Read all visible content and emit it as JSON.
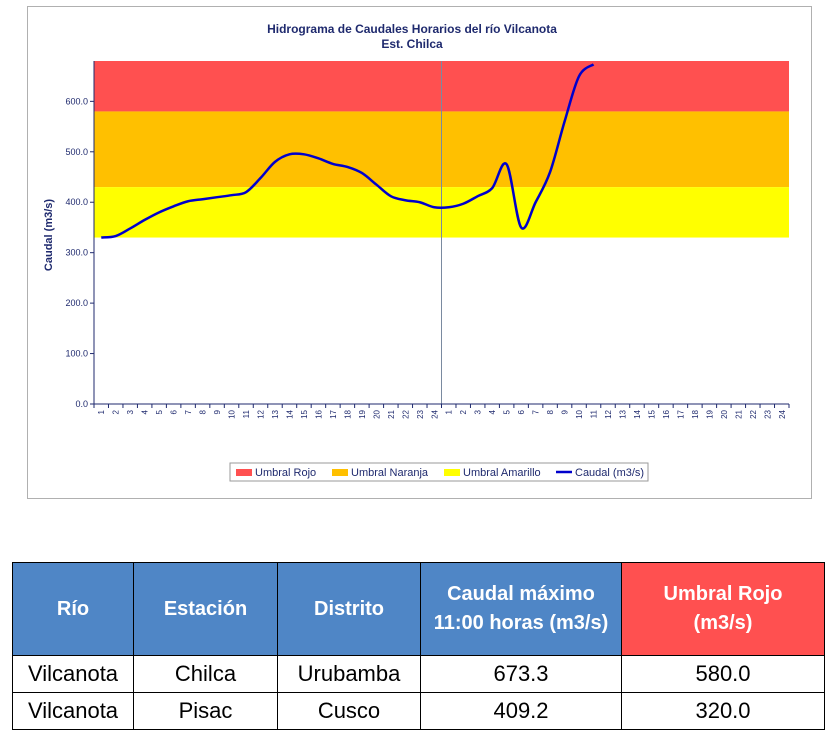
{
  "chart_data": {
    "type": "area",
    "title": "Hidrograma de Caudales Horarios del río Vilcanota",
    "subtitle": "Est. Chilca",
    "ylabel": "Caudal (m3/s)",
    "xlabel": "",
    "ylim": [
      0,
      680
    ],
    "yticks": [
      "0.0",
      "100.0",
      "200.0",
      "300.0",
      "400.0",
      "500.0",
      "600.0"
    ],
    "x_labels": [
      "1",
      "2",
      "3",
      "4",
      "5",
      "6",
      "7",
      "8",
      "9",
      "10",
      "11",
      "12",
      "13",
      "14",
      "15",
      "16",
      "17",
      "18",
      "19",
      "20",
      "21",
      "22",
      "23",
      "24",
      "1",
      "2",
      "3",
      "4",
      "5",
      "6",
      "7",
      "8",
      "9",
      "10",
      "11",
      "12",
      "13",
      "14",
      "15",
      "16",
      "17",
      "18",
      "19",
      "20",
      "21",
      "22",
      "23",
      "24"
    ],
    "bands": [
      {
        "name": "Umbral Rojo",
        "from": 580,
        "to": 680,
        "color": "#ff5050"
      },
      {
        "name": "Umbral Naranja",
        "from": 430,
        "to": 580,
        "color": "#ffc000"
      },
      {
        "name": "Umbral Amarillo",
        "from": 330,
        "to": 430,
        "color": "#ffff00"
      }
    ],
    "series": [
      {
        "name": "Caudal (m3/s)",
        "color": "#0000cc",
        "values": [
          330,
          333,
          348,
          365,
          380,
          392,
          402,
          406,
          410,
          414,
          420,
          448,
          480,
          495,
          495,
          487,
          476,
          470,
          458,
          435,
          412,
          404,
          400,
          390,
          390,
          397,
          412,
          428,
          475,
          350,
          400,
          460,
          560,
          650,
          673.3
        ]
      }
    ],
    "legend_position": "bottom",
    "grid": false
  },
  "table": {
    "headers": [
      "Río",
      "Estación",
      "Distrito",
      "Caudal máximo 11:00 horas (m3/s)",
      "Umbral Rojo (m3/s)"
    ],
    "rows": [
      [
        "Vilcanota",
        "Chilca",
        "Urubamba",
        "673.3",
        "580.0"
      ],
      [
        "Vilcanota",
        "Pisac",
        "Cusco",
        "409.2",
        "320.0"
      ]
    ]
  },
  "colors": {
    "header_blue": "#4f86c6",
    "header_red": "#ff5050",
    "axis_text": "#1f2a6e"
  }
}
